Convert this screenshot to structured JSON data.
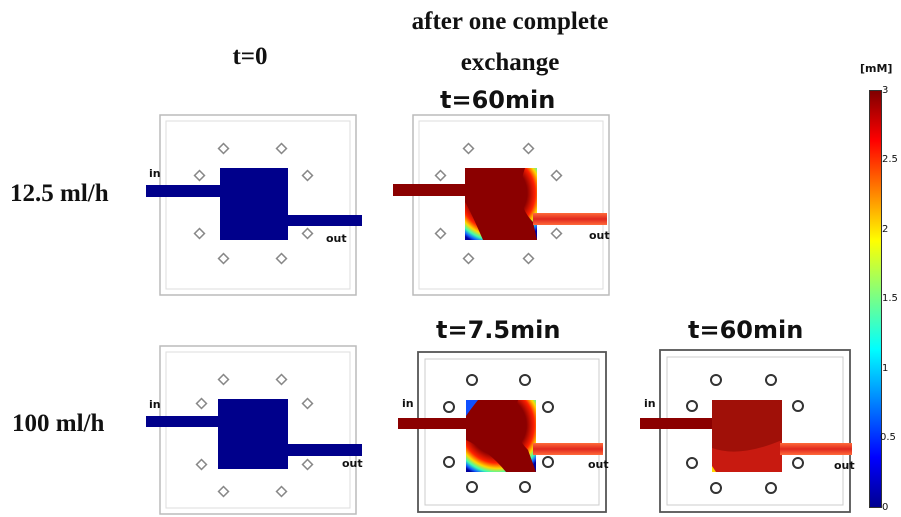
{
  "headers": {
    "col1": "t=0",
    "col2_line1": "after one complete",
    "col2_line2": "exchange",
    "row1_time": "t=60min",
    "row2_time_mid": "t=7.5min",
    "row2_time_right": "t=60min"
  },
  "rows": [
    {
      "label": "12.5 ml/h"
    },
    {
      "label": "100 ml/h"
    }
  ],
  "port_labels": {
    "inlet": "in",
    "outlet": "out"
  },
  "colorbar": {
    "unit": "[mM]",
    "min": 0,
    "max": 3,
    "ticks": [
      "3",
      "2.5",
      "2",
      "1.5",
      "1",
      "0.5",
      "0"
    ],
    "colormap": [
      "#7f0000",
      "#ff0000",
      "#ffff00",
      "#00ffff",
      "#0000ff",
      "#00008f"
    ]
  },
  "colors": {
    "initial_fill": "#00008b",
    "high_concentration": "#8b0000",
    "outlet_red": "#e0281e",
    "frame": "#cccccc"
  }
}
